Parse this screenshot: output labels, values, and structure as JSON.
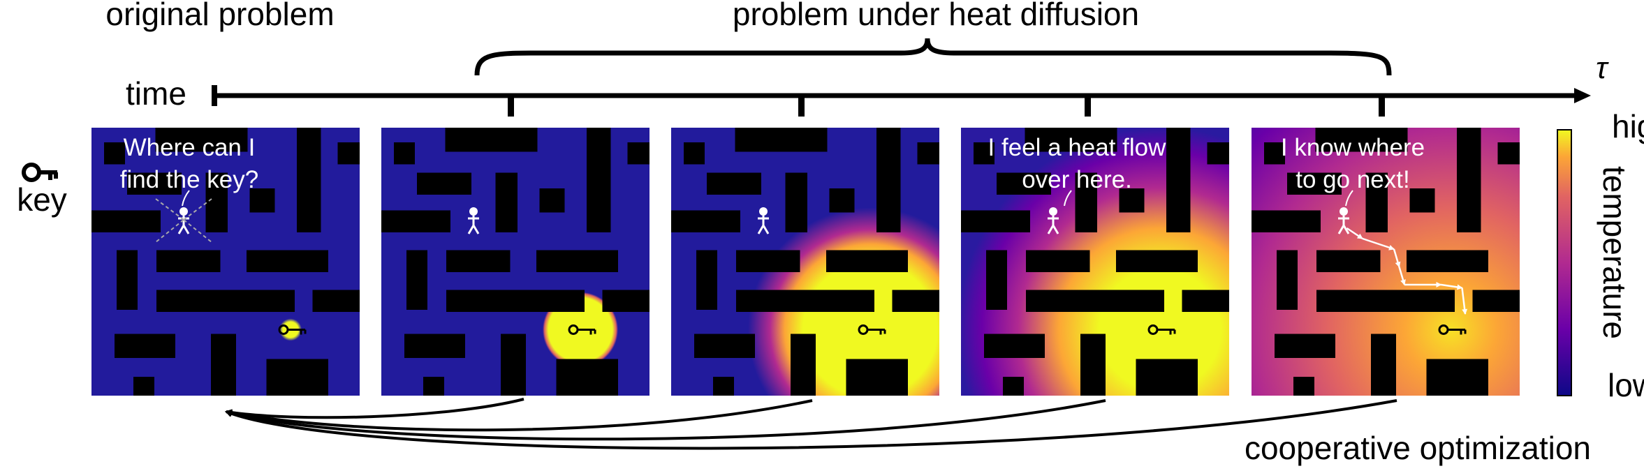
{
  "header": {
    "left_title": "original problem",
    "right_title": "problem under heat diffusion"
  },
  "timeline": {
    "label": "time",
    "end_label": "τ"
  },
  "legend": {
    "label": "key"
  },
  "speech": [
    [
      "Where can I",
      "find the key?"
    ],
    [
      "I feel a heat flow",
      "over here."
    ],
    [
      "I know where",
      "to go next!"
    ]
  ],
  "colorbar": {
    "high": "high",
    "low": "low",
    "label": "temperature"
  },
  "footer": "cooperative optimization"
}
